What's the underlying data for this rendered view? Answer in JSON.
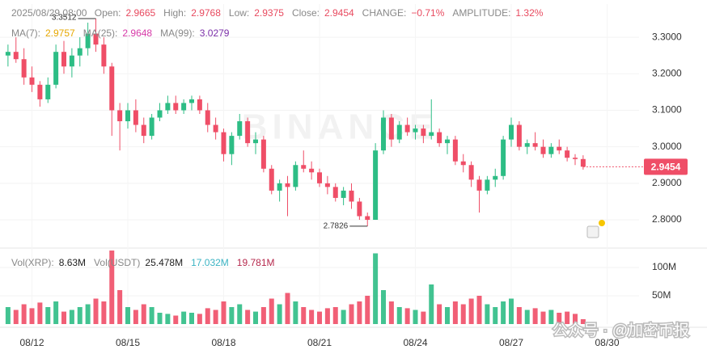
{
  "chart_data": {
    "type": "candlestick",
    "header": {
      "time": "2025/08/29 08:00",
      "value_color": "#e84a5f",
      "fields": [
        {
          "label": "Open:",
          "value": "2.9665"
        },
        {
          "label": "High:",
          "value": "2.9768"
        },
        {
          "label": "Low:",
          "value": "2.9375"
        },
        {
          "label": "Close:",
          "value": "2.9454"
        },
        {
          "label": "CHANGE:",
          "value": "−0.71%"
        },
        {
          "label": "AMPLITUDE:",
          "value": "1.32%"
        }
      ]
    },
    "ma_legend": [
      {
        "label": "MA(7):",
        "value": "2.9757",
        "color": "#e6a700"
      },
      {
        "label": "MA(25):",
        "value": "2.9648",
        "color": "#d63ba8"
      },
      {
        "label": "MA(99):",
        "value": "3.0279",
        "color": "#7b2fa8"
      }
    ],
    "volume_legend": [
      {
        "label": "Vol(XRP):",
        "value": "8.63M",
        "color": "#222222"
      },
      {
        "label": "Vol(USDT)",
        "value": "25.478M",
        "color": "#222222"
      },
      {
        "value": "17.032M",
        "color": "#3bb3c3"
      },
      {
        "value": "19.781M",
        "color": "#b5284c"
      }
    ],
    "up_color": "#2dbd85",
    "down_color": "#ef4e67",
    "x": [
      11.25,
      11.5,
      11.75,
      12,
      12.25,
      12.5,
      12.75,
      13,
      13.25,
      13.5,
      13.75,
      14,
      14.25,
      14.5,
      14.75,
      15,
      15.25,
      15.5,
      15.75,
      16,
      16.25,
      16.5,
      16.75,
      17,
      17.25,
      17.5,
      17.75,
      18,
      18.25,
      18.5,
      18.75,
      19,
      19.25,
      19.5,
      19.75,
      20,
      20.25,
      20.5,
      20.75,
      21,
      21.25,
      21.5,
      21.75,
      22,
      22.25,
      22.5,
      22.75,
      23,
      23.25,
      23.5,
      23.75,
      24,
      24.25,
      24.5,
      24.75,
      25,
      25.25,
      25.5,
      25.75,
      26,
      26.25,
      26.5,
      26.75,
      27,
      27.25,
      27.5,
      27.75,
      28,
      28.25,
      28.5,
      28.75,
      29,
      29.25
    ],
    "open": [
      3.25,
      3.26,
      3.24,
      3.19,
      3.17,
      3.13,
      3.17,
      3.26,
      3.22,
      3.25,
      3.27,
      3.31,
      3.28,
      3.22,
      3.1,
      3.07,
      3.1,
      3.06,
      3.03,
      3.08,
      3.1,
      3.12,
      3.1,
      3.12,
      3.13,
      3.1,
      3.06,
      3.04,
      2.98,
      3.03,
      3.07,
      3.01,
      3.02,
      2.94,
      2.88,
      2.9,
      2.89,
      2.95,
      2.94,
      2.93,
      2.9,
      2.89,
      2.86,
      2.88,
      2.85,
      2.81,
      2.8,
      2.99,
      3.08,
      3.02,
      3.06,
      3.04,
      3.05,
      3.03,
      3.04,
      3.01,
      3.02,
      2.96,
      2.95,
      2.91,
      2.88,
      2.91,
      2.92,
      3.02,
      3.06,
      3.0,
      3.01,
      3.0,
      2.98,
      3.0,
      2.99,
      2.97,
      2.9665
    ],
    "high": [
      3.28,
      3.3,
      3.27,
      3.22,
      3.18,
      3.19,
      3.28,
      3.29,
      3.27,
      3.3,
      3.34,
      3.3512,
      3.3,
      3.23,
      3.12,
      3.12,
      3.13,
      3.08,
      3.09,
      3.12,
      3.14,
      3.14,
      3.13,
      3.14,
      3.14,
      3.12,
      3.08,
      3.05,
      3.04,
      3.09,
      3.08,
      3.04,
      3.03,
      2.95,
      2.91,
      2.92,
      2.96,
      2.99,
      2.96,
      2.94,
      2.92,
      2.9,
      2.89,
      2.9,
      2.86,
      2.82,
      3.01,
      3.1,
      3.09,
      3.07,
      3.08,
      3.06,
      3.06,
      3.13,
      3.05,
      3.03,
      3.03,
      2.98,
      2.96,
      2.92,
      2.92,
      2.94,
      3.03,
      3.08,
      3.07,
      3.02,
      3.04,
      3.02,
      3.01,
      3.02,
      3.0,
      2.98,
      2.9768
    ],
    "low": [
      3.22,
      3.23,
      3.17,
      3.15,
      3.11,
      3.12,
      3.16,
      3.2,
      3.19,
      3.22,
      3.25,
      3.26,
      3.2,
      3.03,
      2.99,
      3.05,
      3.04,
      3.01,
      3.02,
      3.07,
      3.09,
      3.09,
      3.09,
      3.1,
      3.09,
      3.04,
      3.02,
      2.96,
      2.95,
      3.02,
      3.0,
      2.98,
      2.93,
      2.87,
      2.85,
      2.81,
      2.88,
      2.93,
      2.91,
      2.89,
      2.87,
      2.85,
      2.84,
      2.83,
      2.8,
      2.7826,
      2.8,
      2.98,
      3.0,
      3.01,
      3.03,
      3.02,
      3.01,
      3.02,
      3.0,
      2.98,
      2.95,
      2.93,
      2.89,
      2.82,
      2.87,
      2.89,
      2.91,
      3.0,
      2.99,
      2.98,
      2.99,
      2.97,
      2.97,
      2.98,
      2.96,
      2.95,
      2.9375
    ],
    "close": [
      3.26,
      3.24,
      3.19,
      3.17,
      3.13,
      3.17,
      3.26,
      3.22,
      3.25,
      3.27,
      3.31,
      3.28,
      3.22,
      3.1,
      3.07,
      3.1,
      3.06,
      3.03,
      3.08,
      3.1,
      3.12,
      3.1,
      3.12,
      3.13,
      3.1,
      3.06,
      3.04,
      2.98,
      3.03,
      3.07,
      3.01,
      3.02,
      2.94,
      2.88,
      2.9,
      2.89,
      2.95,
      2.94,
      2.93,
      2.9,
      2.89,
      2.86,
      2.88,
      2.85,
      2.81,
      2.8,
      2.99,
      3.08,
      3.02,
      3.06,
      3.04,
      3.05,
      3.03,
      3.04,
      3.01,
      3.02,
      2.96,
      2.95,
      2.91,
      2.88,
      2.91,
      2.92,
      3.02,
      3.06,
      3.0,
      3.01,
      3.0,
      2.98,
      3.0,
      2.99,
      2.97,
      2.9665,
      2.9454
    ],
    "volume": [
      30,
      25,
      35,
      28,
      38,
      30,
      40,
      22,
      25,
      30,
      35,
      45,
      40,
      130,
      60,
      30,
      25,
      35,
      30,
      20,
      18,
      15,
      22,
      20,
      18,
      28,
      25,
      40,
      30,
      35,
      25,
      22,
      30,
      45,
      35,
      55,
      40,
      30,
      25,
      22,
      28,
      30,
      25,
      35,
      40,
      50,
      125,
      60,
      40,
      30,
      28,
      25,
      22,
      70,
      35,
      30,
      40,
      35,
      45,
      50,
      35,
      30,
      40,
      45,
      30,
      25,
      28,
      22,
      25,
      20,
      22,
      18,
      8.63
    ],
    "xlim": [
      11,
      31
    ],
    "xticks": [
      {
        "value": 12,
        "label": "08/12"
      },
      {
        "value": 15,
        "label": "08/15"
      },
      {
        "value": 18,
        "label": "08/18"
      },
      {
        "value": 21,
        "label": "08/21"
      },
      {
        "value": 24,
        "label": "08/24"
      },
      {
        "value": 27,
        "label": "08/27"
      },
      {
        "value": 30,
        "label": "08/30"
      }
    ],
    "ylim": [
      2.727,
      3.391
    ],
    "yticks": [
      {
        "value": 2.8,
        "label": "2.8000"
      },
      {
        "value": 2.9,
        "label": "2.9000"
      },
      {
        "value": 3.0,
        "label": "3.0000"
      },
      {
        "value": 3.1,
        "label": "3.1000"
      },
      {
        "value": 3.2,
        "label": "3.2000"
      },
      {
        "value": 3.3,
        "label": "3.3000"
      }
    ],
    "volume_ylim": [
      0,
      130
    ],
    "volume_yticks": [
      {
        "value": 50,
        "label": "50M"
      },
      {
        "value": 100,
        "label": "100M"
      }
    ],
    "grid": true,
    "watermark_brand": "BINANCE",
    "watermark": "公众号 · @加密币报"
  }
}
